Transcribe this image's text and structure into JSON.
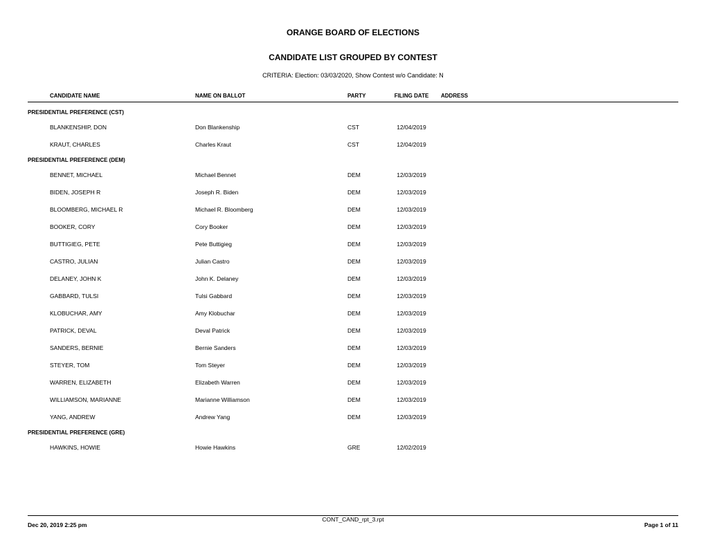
{
  "header": {
    "title": "ORANGE BOARD OF ELECTIONS",
    "subtitle": "CANDIDATE LIST GROUPED BY CONTEST",
    "criteria": "CRITERIA:  Election: 03/03/2020, Show Contest w/o Candidate: N"
  },
  "columns": {
    "candidate": "CANDIDATE NAME",
    "ballot": "NAME ON BALLOT",
    "party": "PARTY",
    "date": "FILING DATE",
    "address": "ADDRESS"
  },
  "contests": [
    {
      "name": "PRESIDENTIAL PREFERENCE (CST)",
      "candidates": [
        {
          "name": "BLANKENSHIP, DON",
          "ballot": "Don Blankenship",
          "party": "CST",
          "date": "12/04/2019"
        },
        {
          "name": "KRAUT, CHARLES",
          "ballot": "Charles Kraut",
          "party": "CST",
          "date": "12/04/2019"
        }
      ]
    },
    {
      "name": "PRESIDENTIAL PREFERENCE (DEM)",
      "candidates": [
        {
          "name": "BENNET, MICHAEL",
          "ballot": "Michael Bennet",
          "party": "DEM",
          "date": "12/03/2019"
        },
        {
          "name": "BIDEN, JOSEPH R",
          "ballot": "Joseph R. Biden",
          "party": "DEM",
          "date": "12/03/2019"
        },
        {
          "name": "BLOOMBERG, MICHAEL R",
          "ballot": "Michael R. Bloomberg",
          "party": "DEM",
          "date": "12/03/2019"
        },
        {
          "name": "BOOKER, CORY",
          "ballot": "Cory Booker",
          "party": "DEM",
          "date": "12/03/2019"
        },
        {
          "name": "BUTTIGIEG, PETE",
          "ballot": "Pete Buttigieg",
          "party": "DEM",
          "date": "12/03/2019"
        },
        {
          "name": "CASTRO, JULIAN",
          "ballot": "Julian Castro",
          "party": "DEM",
          "date": "12/03/2019"
        },
        {
          "name": "DELANEY, JOHN K",
          "ballot": "John K. Delaney",
          "party": "DEM",
          "date": "12/03/2019"
        },
        {
          "name": "GABBARD, TULSI",
          "ballot": "Tulsi Gabbard",
          "party": "DEM",
          "date": "12/03/2019"
        },
        {
          "name": "KLOBUCHAR, AMY",
          "ballot": "Amy Klobuchar",
          "party": "DEM",
          "date": "12/03/2019"
        },
        {
          "name": "PATRICK, DEVAL",
          "ballot": "Deval Patrick",
          "party": "DEM",
          "date": "12/03/2019"
        },
        {
          "name": "SANDERS, BERNIE",
          "ballot": "Bernie Sanders",
          "party": "DEM",
          "date": "12/03/2019"
        },
        {
          "name": "STEYER, TOM",
          "ballot": "Tom Steyer",
          "party": "DEM",
          "date": "12/03/2019"
        },
        {
          "name": "WARREN, ELIZABETH",
          "ballot": "Elizabeth Warren",
          "party": "DEM",
          "date": "12/03/2019"
        },
        {
          "name": "WILLIAMSON, MARIANNE",
          "ballot": "Marianne Williamson",
          "party": "DEM",
          "date": "12/03/2019"
        },
        {
          "name": "YANG, ANDREW",
          "ballot": "Andrew Yang",
          "party": "DEM",
          "date": "12/03/2019"
        }
      ]
    },
    {
      "name": "PRESIDENTIAL PREFERENCE (GRE)",
      "candidates": [
        {
          "name": "HAWKINS, HOWIE",
          "ballot": "Howie Hawkins",
          "party": "GRE",
          "date": "12/02/2019"
        }
      ]
    }
  ],
  "footer": {
    "timestamp": "Dec 20, 2019   2:25 pm",
    "report": "CONT_CAND_rpt_3.rpt",
    "page": "Page 1 of 11"
  }
}
